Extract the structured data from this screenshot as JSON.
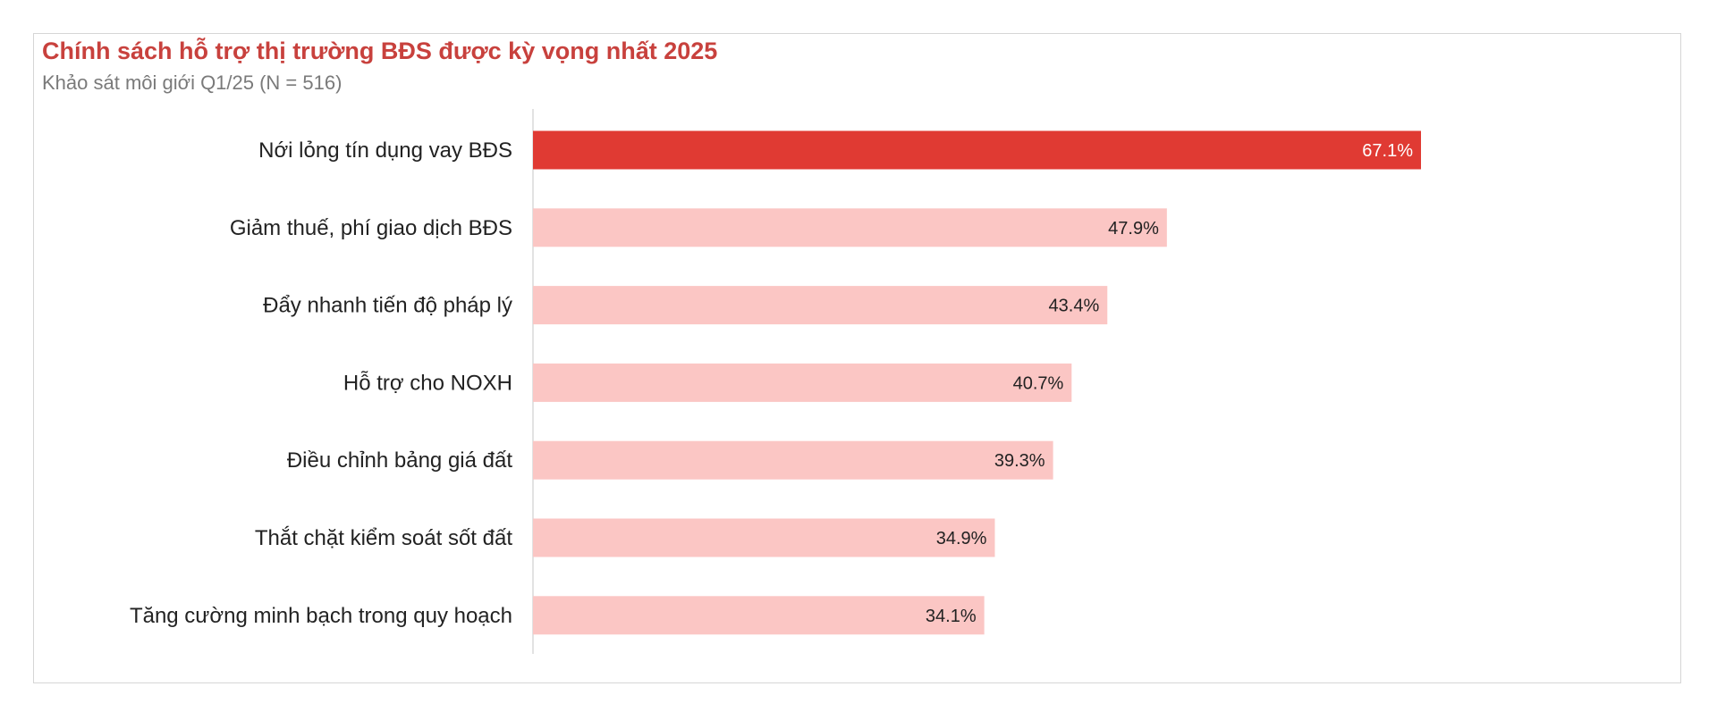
{
  "chart_data": {
    "type": "bar",
    "orientation": "horizontal",
    "title": "Chính sách hỗ trợ thị trường BĐS được kỳ vọng nhất 2025",
    "subtitle": "Khảo sát môi giới Q1/25 (N = 516)",
    "categories": [
      "Nới lỏng tín dụng vay BĐS",
      "Giảm thuế, phí giao dịch BĐS",
      "Đẩy nhanh tiến độ pháp lý",
      "Hỗ trợ cho NOXH",
      "Điều chỉnh bảng giá đất",
      "Thắt chặt kiểm soát sốt đất",
      "Tăng cường minh bạch trong quy hoạch"
    ],
    "values": [
      67.1,
      47.9,
      43.4,
      40.7,
      39.3,
      34.9,
      34.1
    ],
    "value_labels": [
      "67.1%",
      "47.9%",
      "43.4%",
      "40.7%",
      "39.3%",
      "34.9%",
      "34.1%"
    ],
    "xlabel": "",
    "ylabel": "",
    "xlim": [
      0,
      67.1
    ],
    "grid": false,
    "colors": {
      "highlight": "#e03a33",
      "default": "#fbc6c4",
      "title": "#c8413d"
    }
  }
}
